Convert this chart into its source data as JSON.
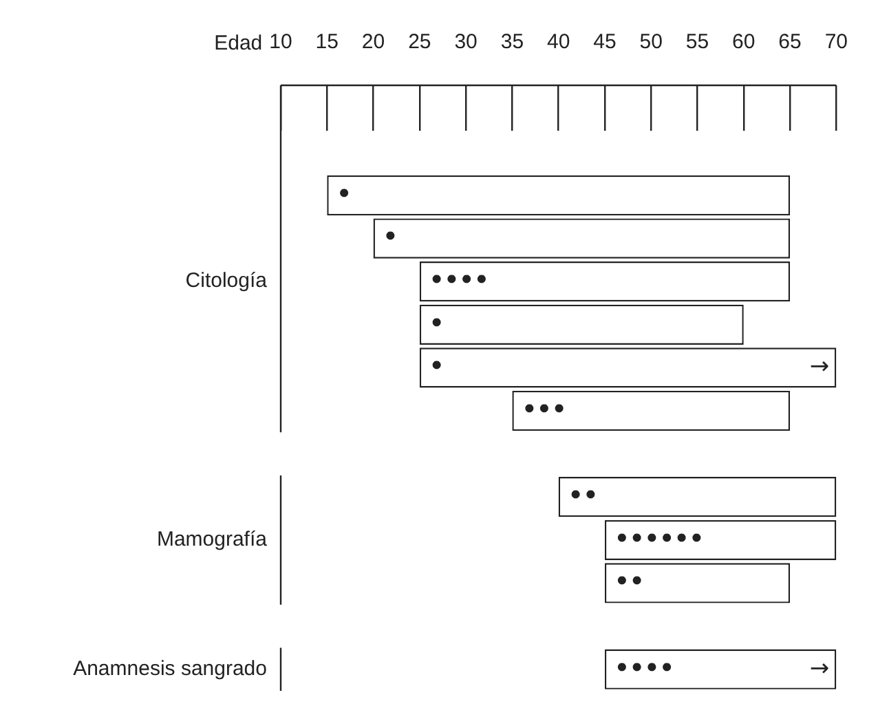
{
  "chart_data": {
    "type": "bar",
    "orientation": "horizontal",
    "xlabel": "Edad",
    "categories": [
      null,
      null,
      null,
      "Citología",
      null,
      null,
      null,
      null,
      null,
      "Mamografía",
      null,
      null,
      "Anamnesis sangrado"
    ],
    "base": [
      null,
      15,
      20,
      25,
      25,
      25,
      35,
      null,
      40,
      45,
      45,
      null,
      45
    ],
    "values": [
      null,
      50,
      45,
      40,
      35,
      45,
      30,
      null,
      30,
      25,
      20,
      null,
      25
    ],
    "value_labels": [
      null,
      "•",
      "•",
      "••••",
      "•",
      "•",
      "•••",
      null,
      "••",
      "••••••",
      "••",
      null,
      "••••"
    ],
    "color": "#ffffff",
    "annotations": [
      "→",
      "→"
    ],
    "xlim": [
      10,
      70
    ],
    "xticks": [
      10,
      15,
      20,
      25,
      30,
      35,
      40,
      45,
      50,
      55,
      60,
      65,
      70
    ],
    "grid": false,
    "legend": false
  }
}
